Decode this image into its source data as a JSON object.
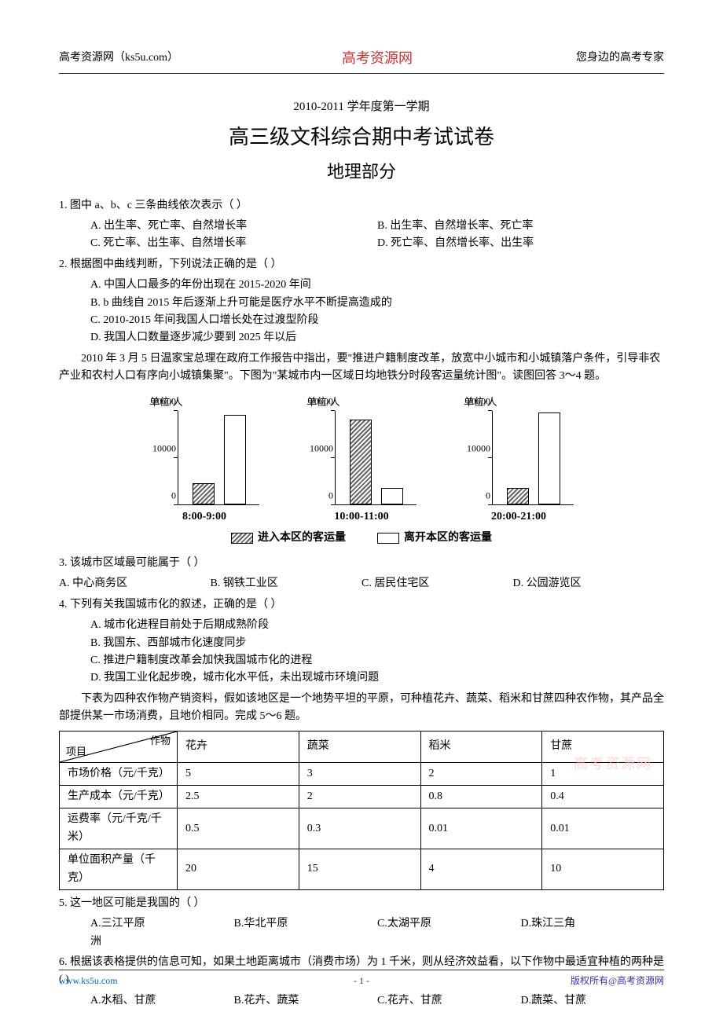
{
  "header": {
    "left": "高考资源网（ks5u.com）",
    "center": "高考资源网",
    "right": "您身边的高考专家"
  },
  "titles": {
    "subtitle": "2010-2011 学年度第一学期",
    "main": "高三级文科综合期中考试试卷",
    "section": "地理部分"
  },
  "q1": {
    "stem": "1. 图中 a、b、c 三条曲线依次表示（      ）",
    "opts": {
      "A": "A.  出生率、死亡率、自然增长率",
      "B": "B.  出生率、自然增长率、死亡率",
      "C": "C.  死亡率、出生率、自然增长率",
      "D": "D.  死亡率、自然增长率、出生率"
    }
  },
  "q2": {
    "stem": "2. 根据图中曲线判断，下列说法正确的是（      ）",
    "opts": {
      "A": "A. 中国人口最多的年份出现在 2015-2020 年间",
      "B": "B. b 曲线自 2015 年后逐渐上升可能是医疗水平不断提高造成的",
      "C": "C. 2010-2015 年间我国人口增长处在过渡型阶段",
      "D": "D. 我国人口数量逐步减少要到 2025 年以后"
    }
  },
  "context1": "2010 年 3 月 5 日温家宝总理在政府工作报告中指出，要\"推进户籍制度改革，放宽中小城市和小城镇落户条件，引导非农产业和农村人口有序向小城镇集聚\"。下图为\"某城市内一区域日均地铁分时段客运量统计图\"。读图回答 3～4 题。",
  "chart": {
    "type": "bar",
    "ylabel": "单位/人",
    "yticks": [
      0,
      10000,
      20000
    ],
    "ymax": 20000,
    "panels": [
      {
        "xlabel": "8:00-9:00",
        "enter": 4500,
        "leave": 19000
      },
      {
        "xlabel": "10:00-11:00",
        "enter": 18000,
        "leave": 3500
      },
      {
        "xlabel": "20:00-21:00",
        "enter": 3500,
        "leave": 19500
      }
    ],
    "legend": {
      "enter": "进入本区的客运量",
      "leave": "离开本区的客运量"
    },
    "colors": {
      "bg": "#ffffff",
      "axis": "#000000",
      "hatch_fg": "#666666",
      "bar_border": "#000000"
    }
  },
  "q3": {
    "stem": "3. 该城市区域最可能属于（      ）",
    "opts": {
      "A": "A. 中心商务区",
      "B": "B. 钢铁工业区",
      "C": "C. 居民住宅区",
      "D": "D. 公园游览区"
    }
  },
  "q4": {
    "stem": "4. 下列有关我国城市化的叙述，正确的是（      ）",
    "opts": {
      "A": "A. 城市化进程目前处于后期成熟阶段",
      "B": "B. 我国东、西部城市化速度同步",
      "C": "C. 推进户籍制度改革会加快我国城市化的进程",
      "D": "D. 我国工业化起步晚，城市化水平低，未出现城市环境问题"
    }
  },
  "context2": "下表为四种农作物产销资料，假如该地区是一个地势平坦的平原，可种植花卉、蔬菜、稻米和甘蔗四种农作物，其产品全部提供某一市场消费，且地价相同。完成 5～6 题。",
  "table": {
    "header_top": "作物",
    "header_bottom": "项目",
    "columns": [
      "花卉",
      "蔬菜",
      "稻米",
      "甘蔗"
    ],
    "rows": [
      {
        "label": "市场价格（元/千克）",
        "cells": [
          "5",
          "3",
          "2",
          "1"
        ]
      },
      {
        "label": "生产成本（元/千克）",
        "cells": [
          "2.5",
          "2",
          "0.8",
          "0.4"
        ]
      },
      {
        "label": "运费率（元/千克/千米）",
        "cells": [
          "0.5",
          "0.3",
          "0.01",
          "0.01"
        ]
      },
      {
        "label": "单位面积产量（千克）",
        "cells": [
          "20",
          "15",
          "4",
          "10"
        ]
      }
    ]
  },
  "q5": {
    "stem": "5. 这一地区可能是我国的（          ）",
    "opts": {
      "A": "A.三江平原",
      "B": "B.华北平原",
      "C": "C.太湖平原",
      "D": "D.珠江三角",
      "D2": "洲"
    }
  },
  "q6": {
    "stem": "6. 根据该表格提供的信息可知，如果土地距离城市（消费市场）为 1 千米，则从经济效益看，以下作物中最适宜种植的两种是(        )",
    "opts": {
      "A": "A.水稻、甘蔗",
      "B": "B.花卉、蔬菜",
      "C": "C.花卉、甘蔗",
      "D": "D.蔬菜、甘蔗"
    }
  },
  "watermark": "高考资源网",
  "footer": {
    "left": "www.ks5u.com",
    "center": "- 1 -",
    "right": "版权所有@高考资源网"
  }
}
